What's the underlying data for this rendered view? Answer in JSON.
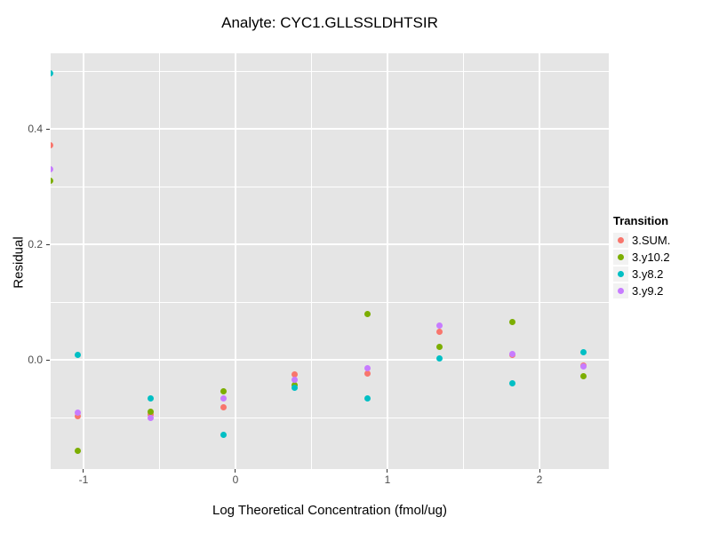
{
  "chart_data": {
    "type": "scatter",
    "title": "Analyte: CYC1.GLLSSLDHTSIR",
    "xlabel": "Log Theoretical Concentration (fmol/ug)",
    "ylabel": "Residual",
    "xlim": [
      -1.216,
      2.456
    ],
    "ylim": [
      -0.189,
      0.531
    ],
    "x_major_ticks": {
      "values": [
        -1,
        0,
        1,
        2
      ],
      "labels": [
        "-1",
        "0",
        "1",
        "2"
      ]
    },
    "y_major_ticks": {
      "values": [
        0.0,
        0.2,
        0.4
      ],
      "labels": [
        "0.0",
        "0.2",
        "0.4"
      ]
    },
    "x_minor_gridlines": [
      -0.5,
      0.5,
      1.5,
      2.5
    ],
    "y_minor_gridlines": [
      -0.1,
      0.1,
      0.3,
      0.5
    ],
    "grid": "major-and-minor-on",
    "panel_background": "#E5E5E5",
    "gridline_color": "#FFFFFF",
    "tick_label_color": "#4D4D4D",
    "legend_position": "right",
    "legend_title": "Transition",
    "legend_key_background": "#F2F2F2",
    "series": [
      {
        "name": "3.SUM.",
        "color": "#F8766D",
        "points": [
          [
            -1.22,
            0.372
          ],
          [
            -1.04,
            -0.097
          ],
          [
            -0.56,
            -0.094
          ],
          [
            -0.08,
            -0.082
          ],
          [
            0.39,
            -0.025
          ],
          [
            0.87,
            -0.023
          ],
          [
            1.34,
            0.049
          ],
          [
            1.82,
            0.009
          ],
          [
            2.29,
            -0.01
          ]
        ]
      },
      {
        "name": "3.y10.2",
        "color": "#7CAE00",
        "points": [
          [
            -1.22,
            0.311
          ],
          [
            -1.04,
            -0.157
          ],
          [
            -0.56,
            -0.089
          ],
          [
            -0.08,
            -0.054
          ],
          [
            0.39,
            -0.043
          ],
          [
            0.87,
            0.08
          ],
          [
            1.34,
            0.023
          ],
          [
            1.82,
            0.066
          ],
          [
            2.29,
            -0.028
          ]
        ]
      },
      {
        "name": "3.y8.2",
        "color": "#00BFC4",
        "points": [
          [
            -1.22,
            0.497
          ],
          [
            -1.04,
            0.009
          ],
          [
            -0.56,
            -0.066
          ],
          [
            -0.08,
            -0.129
          ],
          [
            0.39,
            -0.048
          ],
          [
            0.87,
            -0.066
          ],
          [
            1.34,
            0.002
          ],
          [
            1.82,
            -0.04
          ],
          [
            2.29,
            0.014
          ]
        ]
      },
      {
        "name": "3.y9.2",
        "color": "#C77CFF",
        "points": [
          [
            -1.22,
            0.331
          ],
          [
            -1.04,
            -0.092
          ],
          [
            -0.56,
            -0.1
          ],
          [
            -0.08,
            -0.066
          ],
          [
            0.39,
            -0.034
          ],
          [
            0.87,
            -0.015
          ],
          [
            1.34,
            0.06
          ],
          [
            1.82,
            0.011
          ],
          [
            2.29,
            -0.012
          ]
        ]
      }
    ]
  }
}
